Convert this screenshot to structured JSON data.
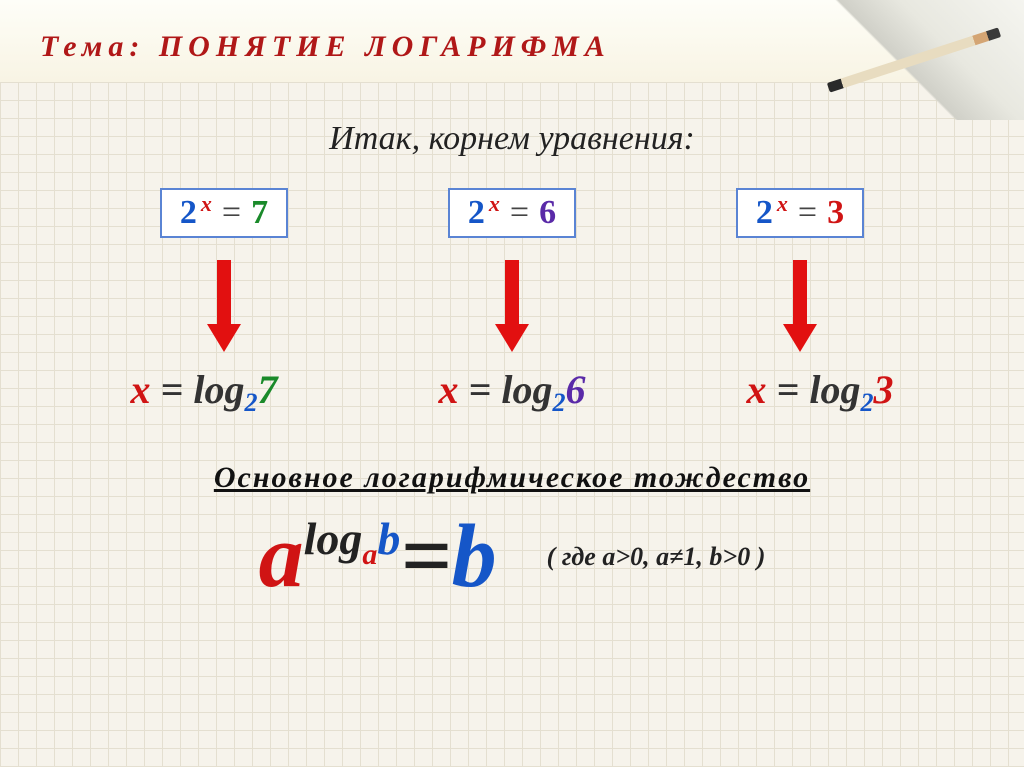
{
  "colors": {
    "title": "#b01818",
    "blue": "#1556c8",
    "red": "#d01414",
    "green": "#1a8a2a",
    "purple": "#5a2aa8",
    "dark": "#222222",
    "arrow": "#e21010",
    "box_border_blue": "#5a84d4"
  },
  "header": {
    "title": "Тема: ПОНЯТИЕ  ЛОГАРИФМА"
  },
  "subtitle": "Итак, корнем уравнения:",
  "equations": [
    {
      "base": "2",
      "exp": "x",
      "eq": "=",
      "rhs": "7",
      "rhs_color": "#1a8a2a"
    },
    {
      "base": "2",
      "exp": "x",
      "eq": "=",
      "rhs": "6",
      "rhs_color": "#5a2aa8"
    },
    {
      "base": "2",
      "exp": "x",
      "eq": "=",
      "rhs": "3",
      "rhs_color": "#d01414"
    }
  ],
  "arrow": {
    "width": 34,
    "height": 92
  },
  "logs": [
    {
      "x": "x",
      "eq": " = ",
      "log": "log",
      "sub": "2",
      "arg": "7",
      "x_color": "#d01414",
      "sub_color": "#1556c8",
      "arg_color": "#1a8a2a"
    },
    {
      "x": "x",
      "eq": " = ",
      "log": "log",
      "sub": "2",
      "arg": "6",
      "x_color": "#d01414",
      "sub_color": "#1556c8",
      "arg_color": "#5a2aa8"
    },
    {
      "x": "x",
      "eq": " = ",
      "log": "log",
      "sub": "2",
      "arg": "3",
      "x_color": "#d01414",
      "sub_color": "#1556c8",
      "arg_color": "#d01414"
    }
  ],
  "identity_title": "Основное  логарифмическое  тождество",
  "identity": {
    "a": "a",
    "log": "log",
    "sub": "a",
    "b_sup": "b",
    "eq": "=",
    "b": "b",
    "a_color": "#d01414",
    "log_color": "#222222",
    "sub_color": "#d01414",
    "bsup_color": "#1556c8",
    "eq_color": "#222222",
    "b_color": "#1556c8"
  },
  "condition": "( где  a>0,  a≠1,  b>0 )"
}
